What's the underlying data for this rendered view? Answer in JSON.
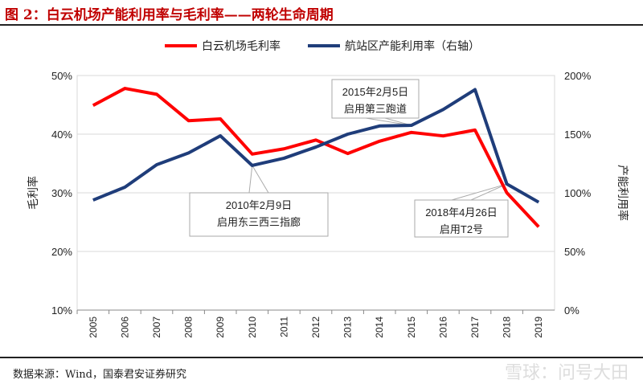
{
  "title": "图 2：白云机场产能利用率与毛利率——两轮生命周期",
  "source": "数据来源：Wind，国泰君安证券研究",
  "watermark": "雪球：问号大田",
  "chart_data": {
    "type": "line",
    "categories": [
      "2005",
      "2006",
      "2007",
      "2008",
      "2009",
      "2010",
      "2011",
      "2012",
      "2013",
      "2014",
      "2015",
      "2016",
      "2017",
      "2018",
      "2019"
    ],
    "series": [
      {
        "name": "白云机场毛利率",
        "axis": "left",
        "color": "#ff0000",
        "values": [
          44.9,
          47.8,
          46.8,
          42.3,
          42.6,
          36.6,
          37.5,
          39.0,
          36.7,
          38.8,
          40.3,
          39.7,
          40.7,
          30.0,
          24.2
        ]
      },
      {
        "name": "航站区产能利用率（右轴）",
        "axis": "right",
        "color": "#1f3d7a",
        "values": [
          93.8,
          104.8,
          124,
          134,
          148.6,
          123.3,
          129.5,
          139,
          150,
          157,
          157.5,
          171,
          188,
          107.5,
          92
        ]
      }
    ],
    "ylabel": "毛利率",
    "y2label": "产能利用率",
    "ylim": [
      10,
      50
    ],
    "y2lim": [
      0,
      200
    ],
    "yticks": [
      "10%",
      "20%",
      "30%",
      "40%",
      "50%"
    ],
    "y2ticks": [
      "0%",
      "50%",
      "100%",
      "150%",
      "200%"
    ],
    "grid": true,
    "legend": "top",
    "annotations": [
      {
        "lines": [
          "2010年2月9日",
          "启用东三西三指廊"
        ],
        "year": "2010"
      },
      {
        "lines": [
          "2015年2月5日",
          "启用第三跑道"
        ],
        "year": "2015"
      },
      {
        "lines": [
          "2018年4月26日",
          "启用T2号"
        ],
        "year": "2018"
      }
    ]
  }
}
